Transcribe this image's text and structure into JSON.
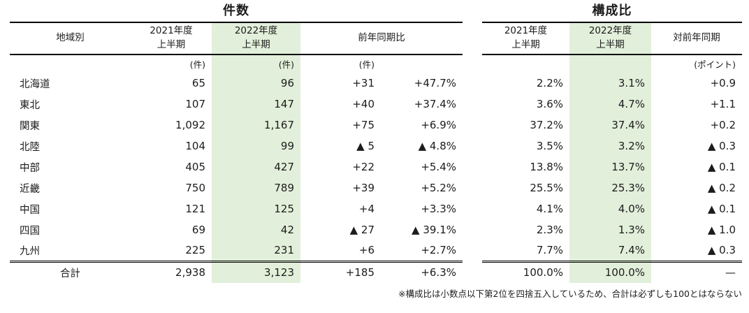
{
  "page": {
    "background": "#ffffff",
    "highlight_green": "#e2efda",
    "line_color": "#000000"
  },
  "left_table": {
    "title": "件数",
    "headers": {
      "region": "地域別",
      "fy2021": "2021年度\n上半期",
      "fy2022": "2022年度\n上半期",
      "yoy": "前年同期比"
    },
    "units": {
      "fy2021": "(件)",
      "fy2022": "(件)",
      "diff": "(件)"
    }
  },
  "right_table": {
    "title": "構成比",
    "headers": {
      "fy2021": "2021年度\n上半期",
      "fy2022": "2022年度\n上半期",
      "yoy": "対前年同期"
    },
    "units": {
      "point": "(ポイント)"
    }
  },
  "rows": [
    {
      "region": "北海道",
      "fy2021": "65",
      "fy2022": "96",
      "diff": "+31",
      "diff_pct": "+47.7%",
      "share2021": "2.2%",
      "share2022": "3.1%",
      "point": "+0.9"
    },
    {
      "region": "東北",
      "fy2021": "107",
      "fy2022": "147",
      "diff": "+40",
      "diff_pct": "+37.4%",
      "share2021": "3.6%",
      "share2022": "4.7%",
      "point": "+1.1"
    },
    {
      "region": "関東",
      "fy2021": "1,092",
      "fy2022": "1,167",
      "diff": "+75",
      "diff_pct": "+6.9%",
      "share2021": "37.2%",
      "share2022": "37.4%",
      "point": "+0.2"
    },
    {
      "region": "北陸",
      "fy2021": "104",
      "fy2022": "99",
      "diff": "▲ 5",
      "diff_pct": "▲ 4.8%",
      "share2021": "3.5%",
      "share2022": "3.2%",
      "point": "▲ 0.3"
    },
    {
      "region": "中部",
      "fy2021": "405",
      "fy2022": "427",
      "diff": "+22",
      "diff_pct": "+5.4%",
      "share2021": "13.8%",
      "share2022": "13.7%",
      "point": "▲ 0.1"
    },
    {
      "region": "近畿",
      "fy2021": "750",
      "fy2022": "789",
      "diff": "+39",
      "diff_pct": "+5.2%",
      "share2021": "25.5%",
      "share2022": "25.3%",
      "point": "▲ 0.2"
    },
    {
      "region": "中国",
      "fy2021": "121",
      "fy2022": "125",
      "diff": "+4",
      "diff_pct": "+3.3%",
      "share2021": "4.1%",
      "share2022": "4.0%",
      "point": "▲ 0.1"
    },
    {
      "region": "四国",
      "fy2021": "69",
      "fy2022": "42",
      "diff": "▲ 27",
      "diff_pct": "▲ 39.1%",
      "share2021": "2.3%",
      "share2022": "1.3%",
      "point": "▲ 1.0"
    },
    {
      "region": "九州",
      "fy2021": "225",
      "fy2022": "231",
      "diff": "+6",
      "diff_pct": "+2.7%",
      "share2021": "7.7%",
      "share2022": "7.4%",
      "point": "▲ 0.3"
    }
  ],
  "total_row": {
    "region": "合計",
    "fy2021": "2,938",
    "fy2022": "3,123",
    "diff": "+185",
    "diff_pct": "+6.3%",
    "share2021": "100.0%",
    "share2022": "100.0%",
    "point": "—"
  },
  "footnote": "※構成比は小数点以下第2位を四捨五入しているため、合計は必ずしも100とはならない"
}
